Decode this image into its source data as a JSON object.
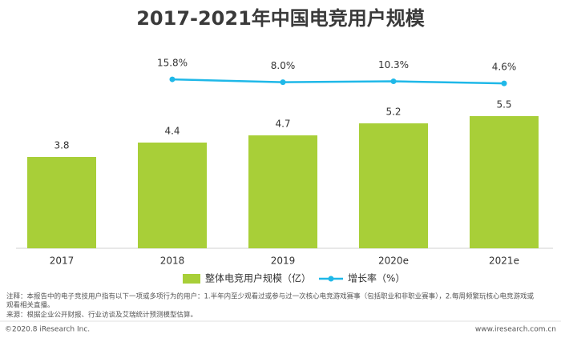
{
  "chart_data": {
    "type": "bar-line",
    "title": "2017-2021年中国电竞用户规模",
    "categories": [
      "2017",
      "2018",
      "2019",
      "2020e",
      "2021e"
    ],
    "series": [
      {
        "name": "整体电竞用户规模（亿）",
        "color": "#a8cf38",
        "values": [
          3.8,
          4.4,
          4.7,
          5.2,
          5.5
        ]
      },
      {
        "name": "增长率（%）",
        "color": "#1fb8e8",
        "axis": "y2",
        "values": [
          null,
          15.8,
          8.0,
          10.3,
          4.6
        ],
        "value_labels": [
          null,
          "15.8%",
          "8.0%",
          "10.3%",
          "4.6%"
        ]
      }
    ],
    "ylim": [
      0,
      8
    ],
    "y2lim": [
      -450,
      80
    ],
    "legend": "bottom",
    "notes": [
      "注释：本报告中的电子竞技用户指有以下一项或多项行为的用户：1.半年内至少观看过或参与过一次核心电竞游戏赛事（包括职业和非职业赛事），2.每周频繁玩核心电竞游戏或",
      "观看相关直播。",
      "来源：根据企业公开财报、行业访谈及艾瑞统计预测模型估算。"
    ],
    "copyright": "©2020.8 iResearch Inc.",
    "website": "www.iresearch.com.cn"
  }
}
